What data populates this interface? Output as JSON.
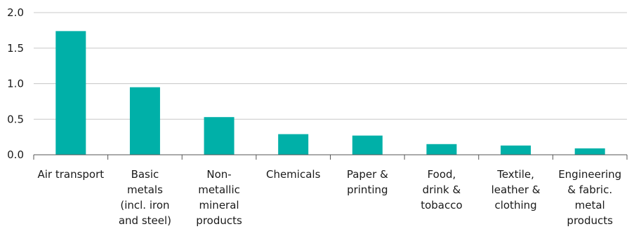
{
  "chart_data": {
    "type": "bar",
    "categories": [
      [
        "Air transport"
      ],
      [
        "Basic",
        "metals",
        "(incl. iron",
        "and steel)"
      ],
      [
        "Non-",
        "metallic",
        "mineral",
        "products"
      ],
      [
        "Chemicals"
      ],
      [
        "Paper &",
        "printing"
      ],
      [
        "Food,",
        "drink &",
        "tobacco"
      ],
      [
        "Textile,",
        "leather &",
        "clothing"
      ],
      [
        "Engineering",
        "& fabric.",
        "metal",
        "products"
      ]
    ],
    "values": [
      1.74,
      0.95,
      0.53,
      0.29,
      0.27,
      0.15,
      0.13,
      0.09
    ],
    "yticks": [
      "0.0",
      "0.5",
      "1.0",
      "1.5",
      "2.0"
    ],
    "ylim": [
      0,
      2.0
    ],
    "grid": true,
    "bar_color": "#00b0a8",
    "grid_color": "#c8c8c8",
    "axis_color": "#555555"
  }
}
